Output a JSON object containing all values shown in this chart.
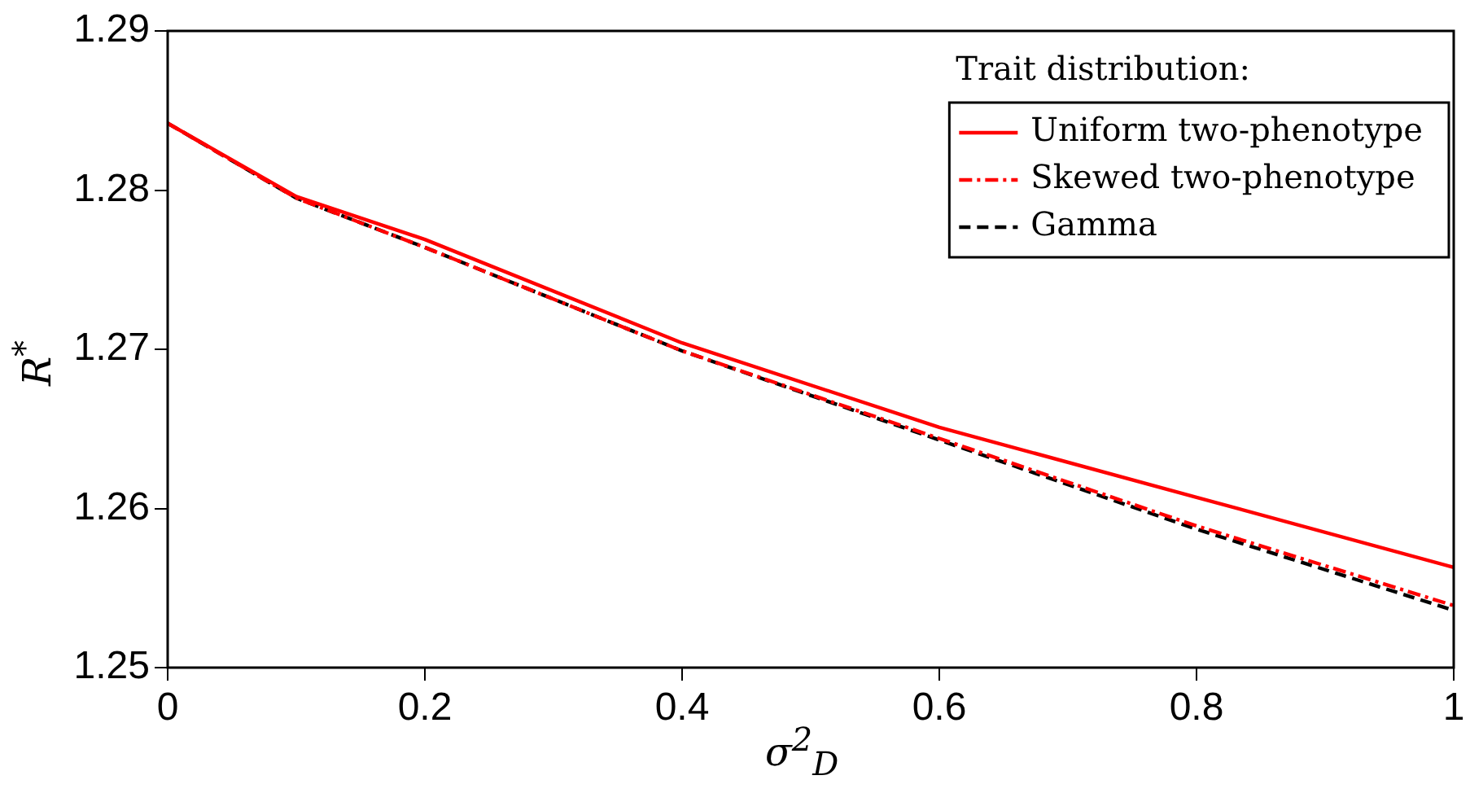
{
  "chart_data": {
    "type": "line",
    "xlabel": "σ$^{2}$$_{D}$",
    "ylabel": "R$^{*}$",
    "legend_title": "Trait distribution:",
    "legend": "top right",
    "grid": false,
    "marker": "none",
    "x": [
      0,
      0.1,
      0.2,
      0.4,
      0.6,
      0.8,
      1
    ],
    "xlim": [
      0,
      1
    ],
    "xticks": [
      0,
      0.2,
      0.4,
      0.6,
      0.8,
      1
    ],
    "ylim": [
      1.25,
      1.29
    ],
    "yticks": [
      1.25,
      1.26,
      1.27,
      1.28,
      1.29
    ],
    "series": [
      {
        "name": "Uniform two-phenotype",
        "color": "#ff0000",
        "line_style": "solid",
        "values": [
          1.2842,
          1.2796,
          1.2769,
          1.2704,
          1.2651,
          1.2607,
          1.2563
        ]
      },
      {
        "name": "Skewed two-phenotype",
        "color": "#ff0000",
        "line_style": "dashdot",
        "values": [
          1.2842,
          1.2795,
          1.2764,
          1.2699,
          1.2644,
          1.2589,
          1.2539
        ]
      },
      {
        "name": "Gamma",
        "color": "#000000",
        "line_style": "dashed",
        "values": [
          1.2842,
          1.2795,
          1.2764,
          1.2699,
          1.2643,
          1.2587,
          1.2536
        ]
      }
    ]
  }
}
